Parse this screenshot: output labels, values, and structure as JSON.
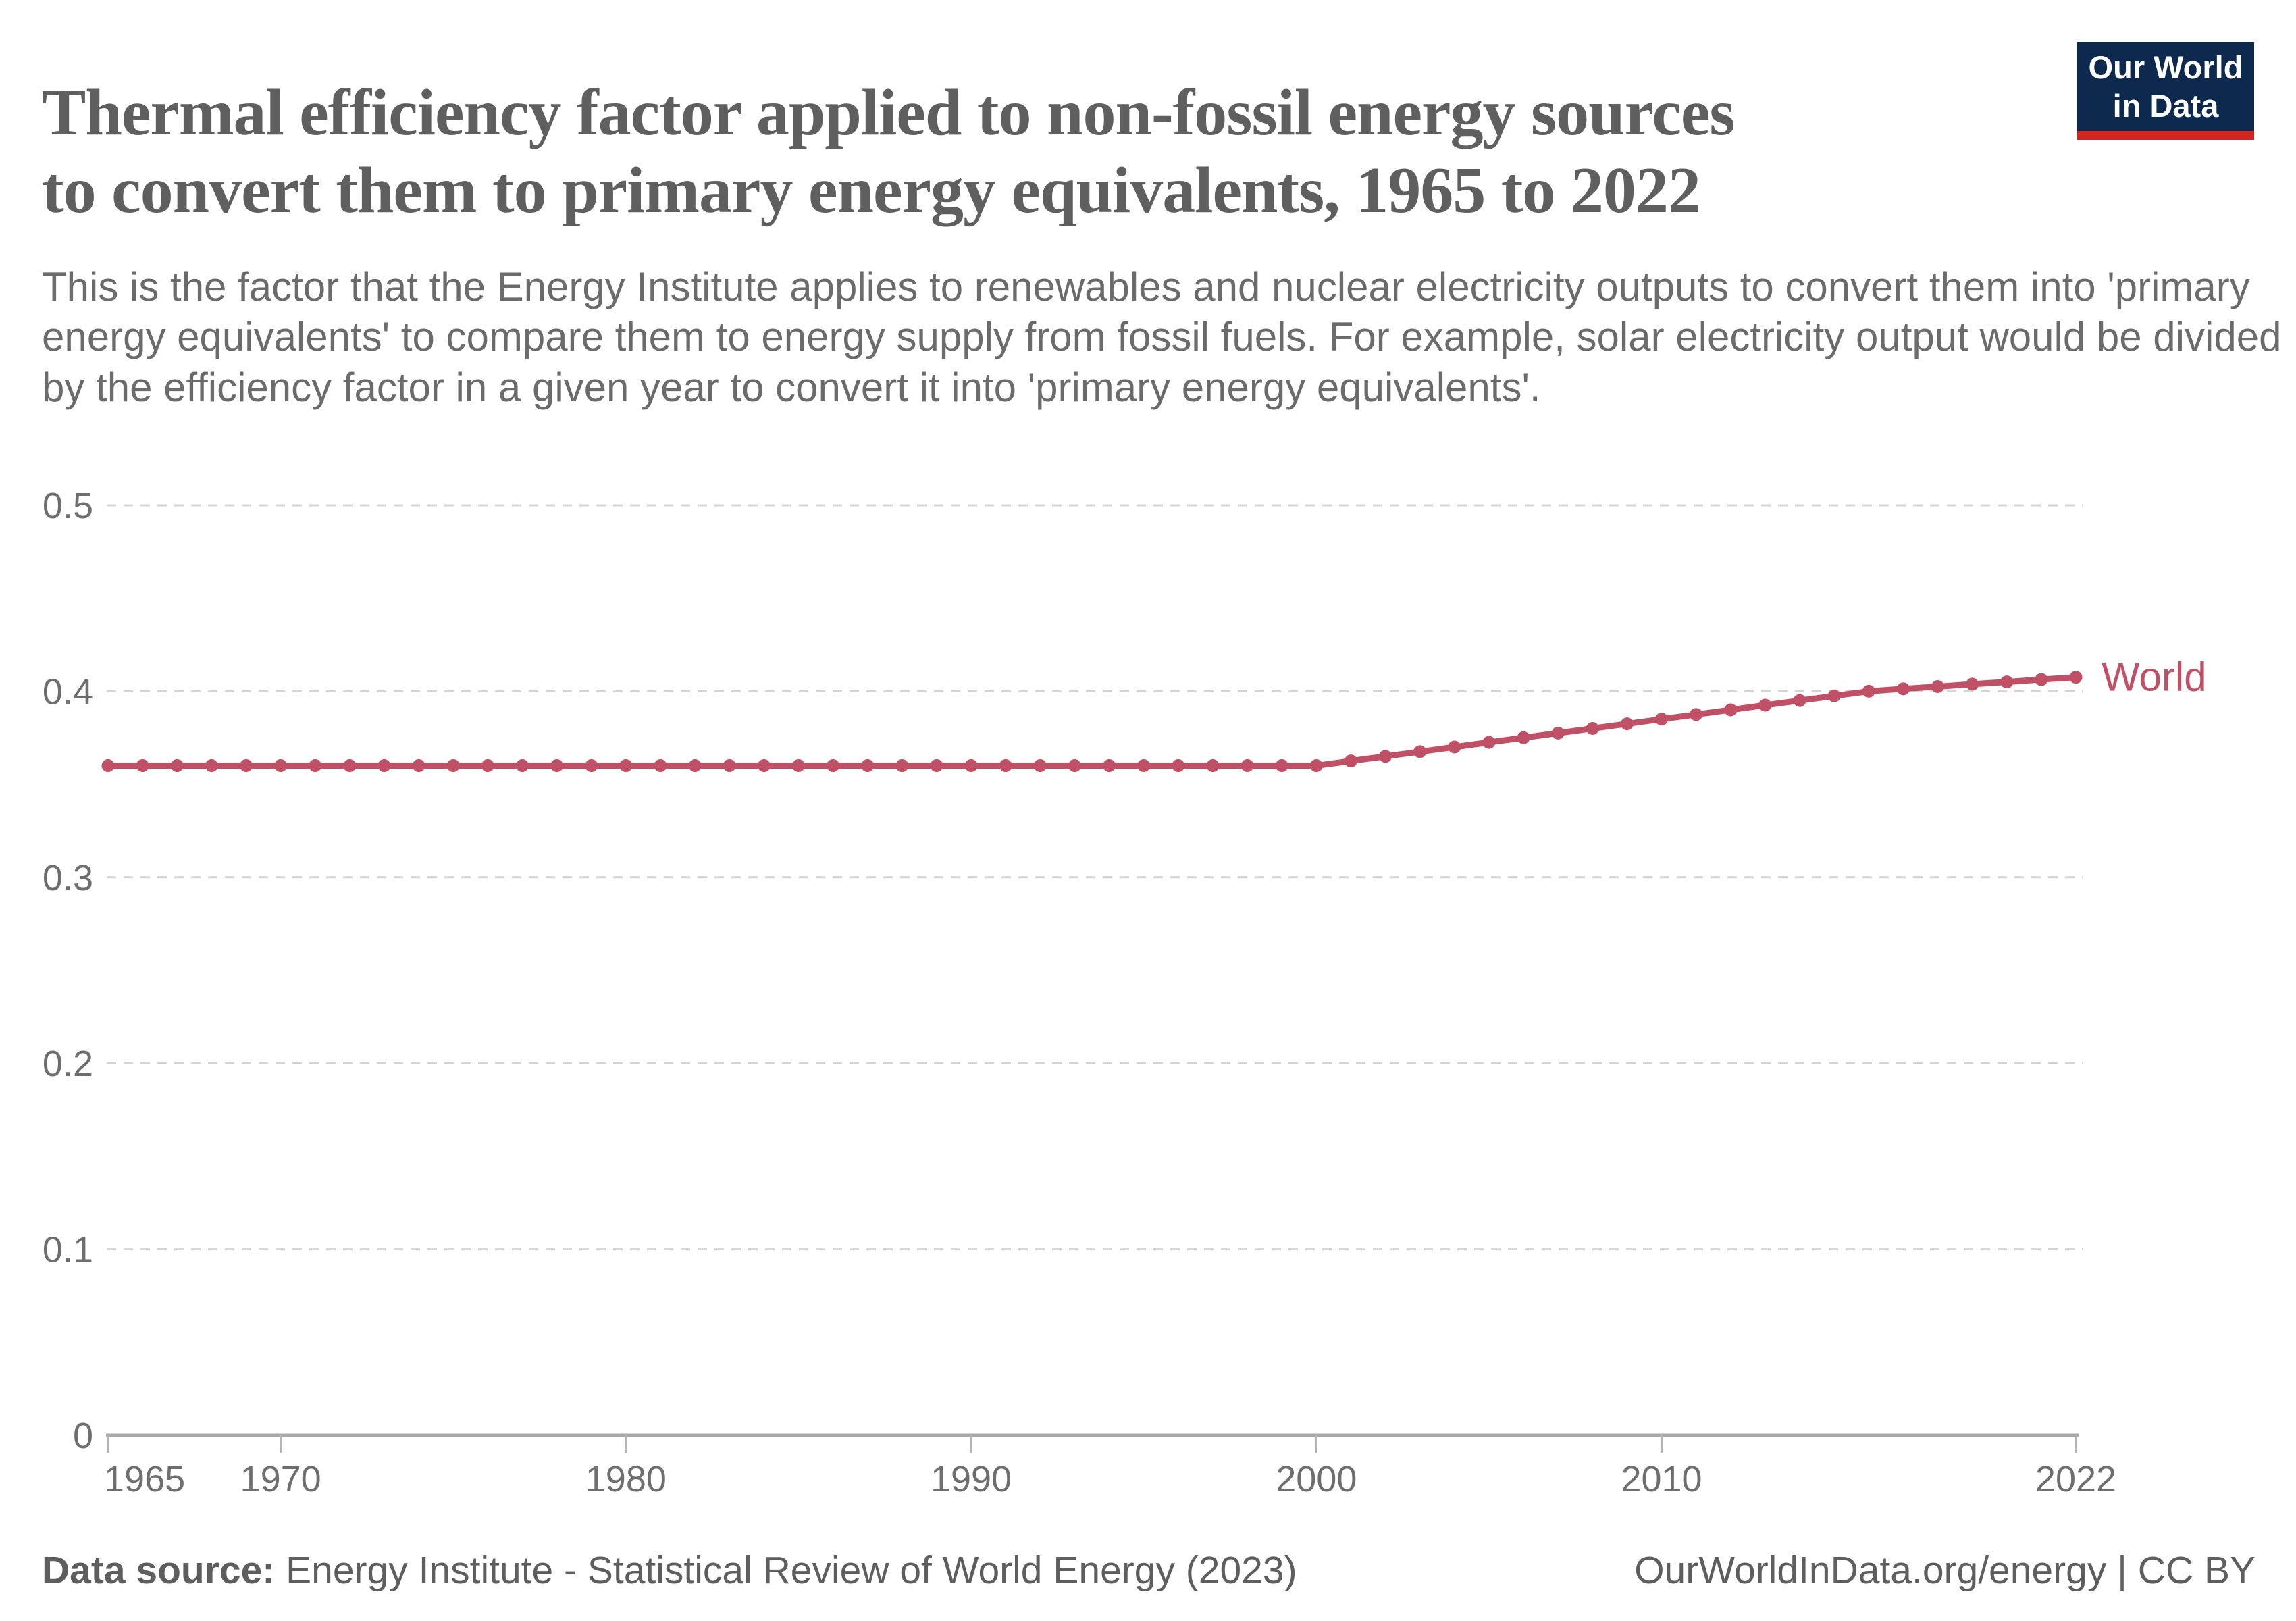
{
  "header": {
    "title": "Thermal efficiency factor applied to non-fossil energy sources\nto convert them to primary energy equivalents, 1965 to 2022",
    "subtitle": "This is the factor that the Energy Institute applies to renewables and nuclear electricity outputs to convert them into 'primary\nenergy equivalents' to compare them to energy supply from fossil fuels. For example, solar electricity output would be divided\nby the efficiency factor in a given year to convert it into 'primary energy equivalents'.",
    "logo_text": "Our World\nin Data"
  },
  "footer": {
    "source_label": "Data source:",
    "source_text": " Energy Institute - Statistical Review of World Energy (2023)",
    "rights": "OurWorldInData.org/energy | CC BY"
  },
  "colors": {
    "line": "#bf5065",
    "grid": "#d4d4d4",
    "axis": "#a9a9a9",
    "tick": "#b5b5b5",
    "tick_label": "#6e6e6e",
    "logo_bg": "#0d2a4e",
    "logo_red": "#cf2420"
  },
  "chart_data": {
    "type": "line",
    "title": "Thermal efficiency factor applied to non-fossil energy sources to convert them to primary energy equivalents",
    "xlabel": "",
    "ylabel": "",
    "xlim": [
      1965,
      2022
    ],
    "ylim": [
      0,
      0.5
    ],
    "grid": "dashed horizontal",
    "legend_position": "end-of-line label",
    "x_ticks": [
      1965,
      1970,
      1980,
      1990,
      2000,
      2010,
      2022
    ],
    "y_ticks": [
      0,
      0.1,
      0.2,
      0.3,
      0.4,
      0.5
    ],
    "y_tick_labels": [
      "0",
      "0.1",
      "0.2",
      "0.3",
      "0.4",
      "0.5"
    ],
    "x": [
      1965,
      1966,
      1967,
      1968,
      1969,
      1970,
      1971,
      1972,
      1973,
      1974,
      1975,
      1976,
      1977,
      1978,
      1979,
      1980,
      1981,
      1982,
      1983,
      1984,
      1985,
      1986,
      1987,
      1988,
      1989,
      1990,
      1991,
      1992,
      1993,
      1994,
      1995,
      1996,
      1997,
      1998,
      1999,
      2000,
      2001,
      2002,
      2003,
      2004,
      2005,
      2006,
      2007,
      2008,
      2009,
      2010,
      2011,
      2012,
      2013,
      2014,
      2015,
      2016,
      2017,
      2018,
      2019,
      2020,
      2021,
      2022
    ],
    "series": [
      {
        "name": "World",
        "values": [
          0.36,
          0.36,
          0.36,
          0.36,
          0.36,
          0.36,
          0.36,
          0.36,
          0.36,
          0.36,
          0.36,
          0.36,
          0.36,
          0.36,
          0.36,
          0.36,
          0.36,
          0.36,
          0.36,
          0.36,
          0.36,
          0.36,
          0.36,
          0.36,
          0.36,
          0.36,
          0.36,
          0.36,
          0.36,
          0.36,
          0.36,
          0.36,
          0.36,
          0.36,
          0.36,
          0.36,
          0.3625,
          0.365,
          0.3675,
          0.37,
          0.3725,
          0.375,
          0.3775,
          0.38,
          0.3825,
          0.385,
          0.3875,
          0.39,
          0.3925,
          0.395,
          0.3975,
          0.4,
          0.4013,
          0.4025,
          0.4038,
          0.405,
          0.4063,
          0.4075
        ]
      }
    ]
  }
}
